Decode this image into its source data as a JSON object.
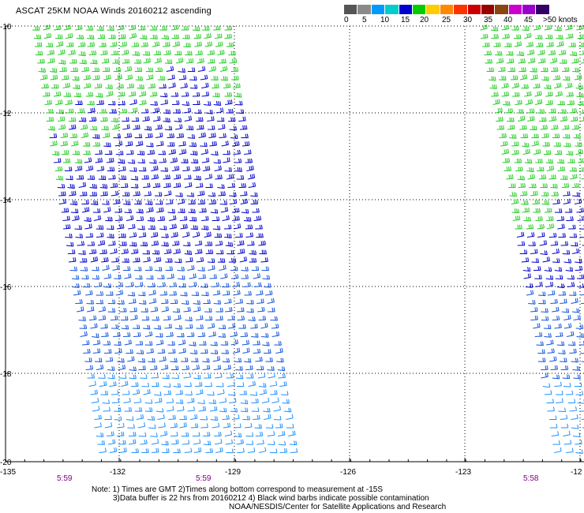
{
  "title": "ASCAT 25KM NOAA Winds 20160212 ascending",
  "legend": {
    "colors": [
      "#555555",
      "#8a8a8a",
      "#0099ff",
      "#00cccc",
      "#0000cc",
      "#00cc00",
      "#ffcc00",
      "#ff8800",
      "#ff3300",
      "#cc0000",
      "#990000",
      "#8b4513",
      "#cc00cc",
      "#9900cc",
      "#330066"
    ],
    "labels": [
      "0",
      "5",
      "10",
      "15",
      "20",
      "25",
      "30",
      "35",
      "40",
      "45",
      ">50 knots"
    ]
  },
  "latitude_labels": [
    "-10",
    "-12",
    "-14",
    "-16",
    "-18",
    "-20"
  ],
  "longitude_labels": [
    "-135",
    "-132",
    "-129",
    "-126",
    "-123",
    "-12"
  ],
  "pass_times": [
    "5:59",
    "5:59",
    "5:58"
  ],
  "notes": {
    "line1": "Note: 1) Times are GMT 2)Times along bottom correspond to measurement at -15S",
    "line2": "3)Data buffer is 22 hrs from 20160212 4) Black wind barbs indicate possible contamination",
    "line3": "NOAA/NESDIS/Center for Satellite Applications and Research"
  },
  "wind_colors": {
    "green": "#22cc22",
    "dark_blue": "#0000cc",
    "blue": "#1155dd",
    "light_blue": "#1e90ff"
  }
}
